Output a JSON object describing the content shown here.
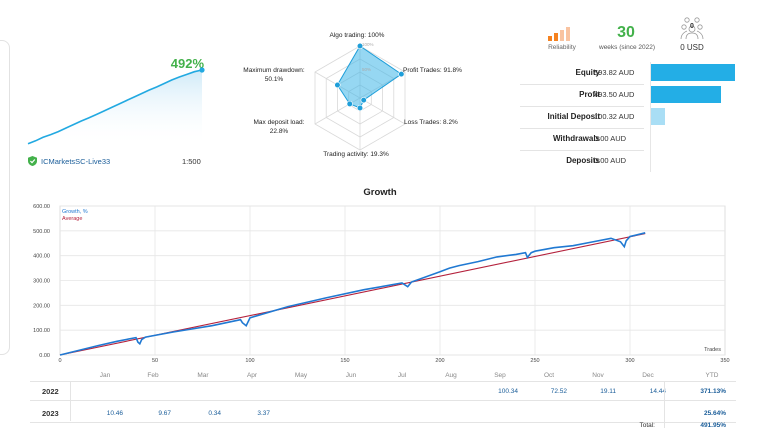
{
  "account": {
    "growth_pct": "492%",
    "server": "ICMarketsSC-Live33",
    "leverage": "1:500",
    "sparkline": [
      5,
      12,
      20,
      26,
      33,
      41,
      49,
      57,
      64,
      72,
      80,
      88,
      96,
      104,
      112,
      120,
      128,
      135,
      143,
      151,
      158,
      164,
      170,
      174
    ]
  },
  "radar": {
    "algo_trading": "Algo trading: 100%",
    "profit_trades": "Profit Trades: 91.8%",
    "loss_trades": "Loss Trades: 8.2%",
    "trading_activity": "Trading activity: 19.3%",
    "max_deposit_load": "Max deposit load:\n22.8%",
    "max_drawdown": "Maximum drawdown:\n50.1%",
    "ring_100": "100%",
    "ring_50": "50%",
    "values": [
      100,
      91.8,
      8.2,
      19.3,
      22.8,
      50.1
    ]
  },
  "header_stats": {
    "reliability_label": "Reliability",
    "weeks_value": "30",
    "weeks_label": "weeks (since 2022)",
    "subscribers_value": "0",
    "usd_value": "0 USD"
  },
  "stats": [
    {
      "label": "Equity",
      "value": "593.82 AUD",
      "fraction": 1.0,
      "color": "#23aee6"
    },
    {
      "label": "Profit",
      "value": "493.50 AUD",
      "fraction": 0.83,
      "color": "#23aee6"
    },
    {
      "label": "Initial Deposit",
      "value": "100.32 AUD",
      "fraction": 0.17,
      "color": "#a9def5"
    },
    {
      "label": "Withdrawals",
      "value": "0.00 AUD",
      "fraction": 0,
      "color": "#23aee6"
    },
    {
      "label": "Deposits",
      "value": "0.00 AUD",
      "fraction": 0,
      "color": "#23aee6"
    }
  ],
  "chart_data": {
    "type": "line",
    "title": "Growth",
    "xlabel": "Trades",
    "ylabel": "",
    "xlim": [
      0,
      350
    ],
    "ylim": [
      0,
      600
    ],
    "x_ticks": [
      "0",
      "50",
      "100",
      "150",
      "200",
      "250",
      "300",
      "350"
    ],
    "y_ticks": [
      "0.00",
      "100.00",
      "200.00",
      "300.00",
      "400.00",
      "500.00",
      "600.00"
    ],
    "legend": [
      "Growth, %",
      "Average"
    ],
    "grid": true,
    "series": [
      {
        "name": "Growth, %",
        "color": "#2079d2",
        "x": [
          0,
          20,
          30,
          40,
          41,
          42,
          43,
          45,
          60,
          80,
          95,
          96,
          98,
          100,
          120,
          140,
          160,
          180,
          183,
          185,
          200,
          205,
          210,
          220,
          230,
          240,
          245,
          246,
          248,
          250,
          260,
          270,
          280,
          290,
          295,
          297,
          298,
          300,
          308
        ],
        "y": [
          0,
          38,
          55,
          70,
          52,
          45,
          62,
          72,
          93,
          118,
          142,
          130,
          118,
          150,
          195,
          230,
          263,
          290,
          275,
          294,
          335,
          350,
          360,
          376,
          395,
          405,
          412,
          393,
          412,
          418,
          432,
          440,
          455,
          470,
          456,
          436,
          460,
          477,
          492
        ]
      },
      {
        "name": "Average",
        "color": "#b4213c",
        "x": [
          0,
          308
        ],
        "y": [
          0,
          489
        ]
      }
    ]
  },
  "monthly": {
    "months": [
      "Jan",
      "Feb",
      "Mar",
      "Apr",
      "May",
      "Jun",
      "Jul",
      "Aug",
      "Sep",
      "Oct",
      "Nov",
      "Dec",
      "YTD"
    ],
    "rows": [
      {
        "year": "2022",
        "values": [
          "",
          "",
          "",
          "",
          "",
          "",
          "",
          "",
          "100.34",
          "72.52",
          "19.11",
          "14.44"
        ],
        "ytd": "371.13%"
      },
      {
        "year": "2023",
        "values": [
          "10.46",
          "9.67",
          "0.34",
          "3.37",
          "",
          "",
          "",
          "",
          "",
          "",
          "",
          ""
        ],
        "ytd": "25.64%"
      }
    ],
    "total_label": "Total:",
    "total_value": "491.95%"
  }
}
